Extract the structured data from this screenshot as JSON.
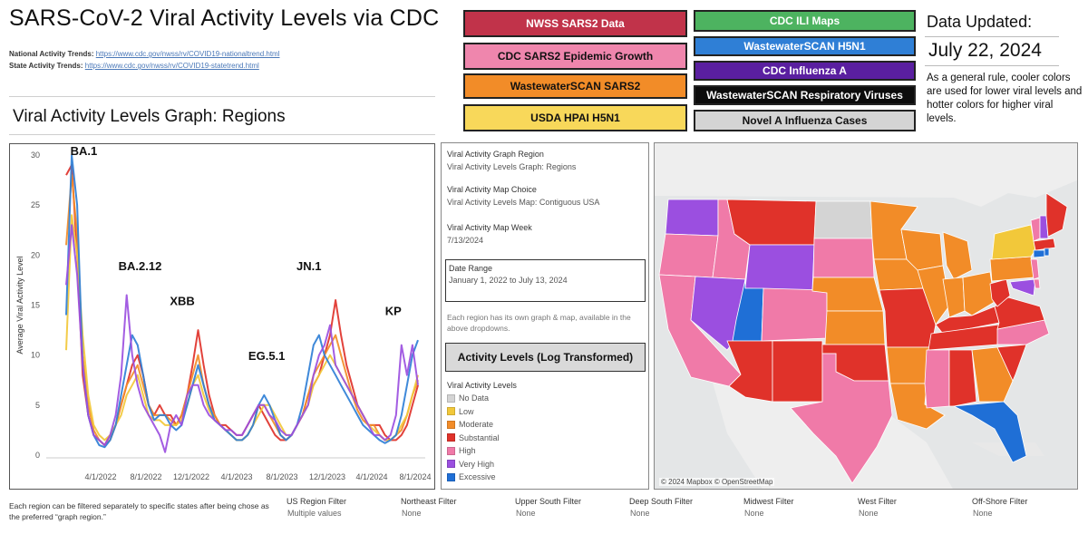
{
  "header": {
    "title": "SARS-CoV-2 Viral Activity Levels via CDC",
    "national_label": "National Activity Trends:",
    "national_url": "https://www.cdc.gov/nwss/rv/COVID19-nationaltrend.html",
    "state_label": "State Activity Trends:",
    "state_url": "https://www.cdc.gov/nwss/rv/COVID19-statetrend.html"
  },
  "graph_title": "Viral Activity Levels Graph: Regions",
  "link_buttons": [
    {
      "label": "NWSS SARS2 Data",
      "bg": "#c1334a",
      "fg": "#ffffff"
    },
    {
      "label": "CDC ILI Maps",
      "bg": "#4db360",
      "fg": "#ffffff"
    },
    {
      "label": "CDC SARS2 Epidemic Growth",
      "bg": "#ef86ad",
      "fg": "#111111"
    },
    {
      "label": "WastewaterSCAN H5N1",
      "bg": "#2f7fd6",
      "fg": "#ffffff"
    },
    {
      "label": "WastewaterSCAN SARS2",
      "bg": "#f28c28",
      "fg": "#111111"
    },
    {
      "label": "CDC Influenza A",
      "bg": "#5a1fa0",
      "fg": "#ffffff"
    },
    {
      "label": "USDA HPAI H5N1",
      "bg": "#f8d85a",
      "fg": "#111111"
    },
    {
      "label": "WastewaterSCAN Respiratory Viruses",
      "bg": "#0c0c0c",
      "fg": "#ffffff"
    },
    {
      "label": "Novel A Influenza Cases",
      "bg": "#d4d4d4",
      "fg": "#111111"
    }
  ],
  "data_updated": {
    "label": "Data Updated:",
    "date": "July 22, 2024",
    "rule": "As a general rule, cooler colors are used for lower viral levels and hotter colors for higher viral levels."
  },
  "controls": {
    "graph_region_label": "Viral Activity Graph Region",
    "graph_region_value": "Viral Activity Levels Graph: Regions",
    "map_choice_label": "Viral Activity Map Choice",
    "map_choice_value": "Viral Activity Levels Map: Contiguous USA",
    "map_week_label": "Viral Activity Map Week",
    "map_week_value": "7/13/2024",
    "date_range_label": "Date Range",
    "date_range_value": "January 1, 2022 to July 13, 2024",
    "note": "Each region has its own graph & map, available in the above dropdowns.",
    "activity_button": "Activity Levels (Log Transformed)"
  },
  "legend": {
    "title": "Viral Activity Levels",
    "items": [
      {
        "label": "No Data",
        "color": "#d4d4d4"
      },
      {
        "label": "Low",
        "color": "#f2c83a"
      },
      {
        "label": "Moderate",
        "color": "#f28c28"
      },
      {
        "label": "Substantial",
        "color": "#e0322a"
      },
      {
        "label": "High",
        "color": "#f07aa8"
      },
      {
        "label": "Very High",
        "color": "#9b4fe0"
      },
      {
        "label": "Excessive",
        "color": "#1f6fd6"
      }
    ]
  },
  "map": {
    "attribution": "© 2024 Mapbox © OpenStreetMap"
  },
  "bottom": {
    "note": "Each region can be filtered separately to specific states after being chose as the preferred “graph region.”",
    "filters": [
      {
        "label": "US Region Filter",
        "value": "Multiple values"
      },
      {
        "label": "Northeast Filter",
        "value": "None"
      },
      {
        "label": "Upper South Filter",
        "value": "None"
      },
      {
        "label": "Deep South Filter",
        "value": "None"
      },
      {
        "label": "Midwest Filter",
        "value": "None"
      },
      {
        "label": "West Filter",
        "value": "None"
      },
      {
        "label": "Off-Shore Filter",
        "value": "None"
      }
    ]
  },
  "chart_data": {
    "type": "line",
    "ylabel": "Average Viral Activity Level",
    "ylim": [
      0,
      30
    ],
    "yticks": [
      0,
      5,
      10,
      15,
      20,
      25,
      30
    ],
    "x_tick_labels": [
      "4/1/2022",
      "8/1/2022",
      "12/1/2022",
      "4/1/2023",
      "8/1/2023",
      "12/1/2023",
      "4/1/2024",
      "8/1/2024"
    ],
    "annotations": [
      {
        "label": "BA.1",
        "x": 0.05,
        "y": 30
      },
      {
        "label": "BA.2.12",
        "x": 0.21,
        "y": 18.5
      },
      {
        "label": "XBB",
        "x": 0.33,
        "y": 15
      },
      {
        "label": "EG.5.1",
        "x": 0.57,
        "y": 9.5
      },
      {
        "label": "JN.1",
        "x": 0.69,
        "y": 18.5
      },
      {
        "label": "KP",
        "x": 0.93,
        "y": 14
      }
    ],
    "grid": false,
    "series": [
      {
        "color": "#e0322a",
        "values": [
          28,
          29,
          20,
          8,
          4,
          2,
          1.5,
          1,
          2,
          3,
          5,
          7,
          9,
          10,
          8,
          5,
          4,
          5,
          4,
          4,
          3,
          4,
          6,
          9,
          12.5,
          9,
          6,
          4,
          3,
          3,
          2.5,
          2,
          2,
          3,
          4,
          5,
          4,
          3,
          2,
          1.5,
          1.5,
          2,
          3,
          4,
          6,
          7,
          8,
          10,
          12,
          15.5,
          12,
          9,
          7,
          5,
          4,
          3,
          3,
          3,
          2,
          1.5,
          1.5,
          2,
          3,
          5,
          7
        ]
      },
      {
        "color": "#f28c28",
        "values": [
          21,
          28,
          22,
          10,
          5,
          2.5,
          1.5,
          1,
          1.5,
          3,
          5,
          7,
          8,
          9,
          7,
          5,
          4,
          4,
          4,
          3.5,
          3,
          4,
          6,
          8,
          10,
          7,
          5,
          4,
          3,
          2.5,
          2,
          1.5,
          1.5,
          2,
          3,
          5,
          5,
          4,
          3,
          2,
          1.5,
          2,
          3,
          4,
          6,
          8,
          9,
          10,
          11,
          12,
          10,
          8,
          6,
          4.5,
          3.5,
          3,
          3,
          2,
          1.5,
          1.5,
          2,
          2.5,
          4,
          6,
          7.5
        ]
      },
      {
        "color": "#f2c83a",
        "values": [
          10.5,
          24,
          20,
          12,
          6,
          3,
          2,
          1.5,
          2,
          3,
          4,
          6,
          7,
          8,
          6,
          4,
          3.5,
          3.5,
          3,
          3,
          3,
          3.5,
          5,
          7,
          8,
          6,
          4.5,
          3.5,
          3,
          2.5,
          2,
          1.5,
          1.5,
          2,
          3,
          4,
          5,
          5,
          4,
          3,
          2,
          2,
          3,
          4,
          5,
          7,
          8,
          9,
          10,
          9,
          8,
          7,
          6,
          5,
          4,
          3,
          2.5,
          2,
          1.5,
          1.5,
          2,
          3,
          4,
          6,
          8
        ]
      },
      {
        "color": "#2f7fd6",
        "values": [
          14,
          30,
          25,
          9,
          4,
          2,
          1,
          0.8,
          1.5,
          3,
          6,
          9,
          12,
          11,
          8,
          5,
          3.5,
          4,
          4,
          3,
          2.5,
          3,
          5,
          7,
          9,
          7,
          5,
          3.5,
          3,
          2.5,
          2,
          1.5,
          1.5,
          2,
          3,
          5,
          6,
          5,
          3.5,
          2,
          1.5,
          2,
          3,
          5,
          8,
          11,
          12,
          10,
          9,
          8,
          7,
          6,
          5,
          4,
          3,
          2.5,
          2,
          1.5,
          1.2,
          1.5,
          2,
          4,
          7,
          10,
          11.5
        ]
      },
      {
        "color": "#9b4fe0",
        "values": [
          17,
          23,
          18,
          9,
          4,
          2,
          1.5,
          1,
          2,
          4,
          8,
          16,
          10,
          7,
          5,
          4,
          3,
          2,
          0.3,
          3,
          4,
          3,
          6,
          7,
          7,
          5,
          4,
          3.5,
          3,
          2.5,
          2.5,
          2,
          2,
          3,
          4,
          5,
          5,
          4,
          3.5,
          2.5,
          2,
          2,
          3,
          4,
          5,
          8,
          10,
          11,
          13,
          9,
          8,
          7,
          6,
          5,
          4,
          3,
          2,
          2,
          1.5,
          2,
          4,
          11,
          8,
          11,
          7
        ]
      }
    ]
  }
}
